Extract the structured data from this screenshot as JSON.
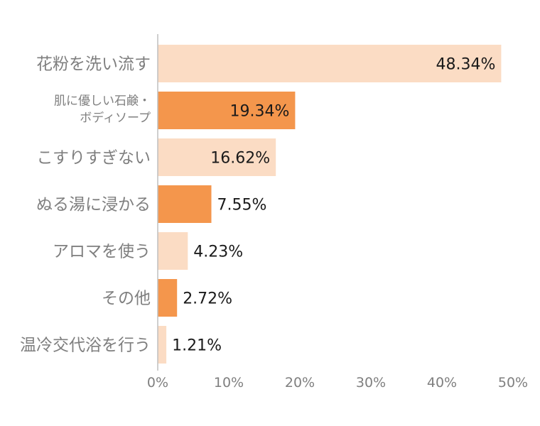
{
  "chart_data": {
    "type": "bar",
    "orientation": "horizontal",
    "categories": [
      [
        "花粉を洗い流す"
      ],
      [
        "肌に優しい石鹸・",
        "ボディソープ"
      ],
      [
        "こすりすぎない"
      ],
      [
        "ぬる湯に浸かる"
      ],
      [
        "アロマを使う"
      ],
      [
        "その他"
      ],
      [
        "温冷交代浴を行う"
      ]
    ],
    "values": [
      48.34,
      19.34,
      16.62,
      7.55,
      4.23,
      2.72,
      1.21
    ],
    "data_labels": [
      "48.34%",
      "19.34%",
      "16.62%",
      "7.55%",
      "4.23%",
      "2.72%",
      "1.21%"
    ],
    "bar_colors": [
      "#fbdcc4",
      "#f4964c",
      "#fbdcc4",
      "#f4964c",
      "#fbdcc4",
      "#f4964c",
      "#fbdcc4"
    ],
    "xlim": [
      0,
      50
    ],
    "x_ticks": [
      0,
      10,
      20,
      30,
      40,
      50
    ],
    "x_tick_labels": [
      "0%",
      "10%",
      "20%",
      "30%",
      "40%",
      "50%"
    ],
    "axis_color": "#bfbfbf",
    "label_color": "#7f7f7f",
    "grid": false,
    "legend": "none"
  }
}
